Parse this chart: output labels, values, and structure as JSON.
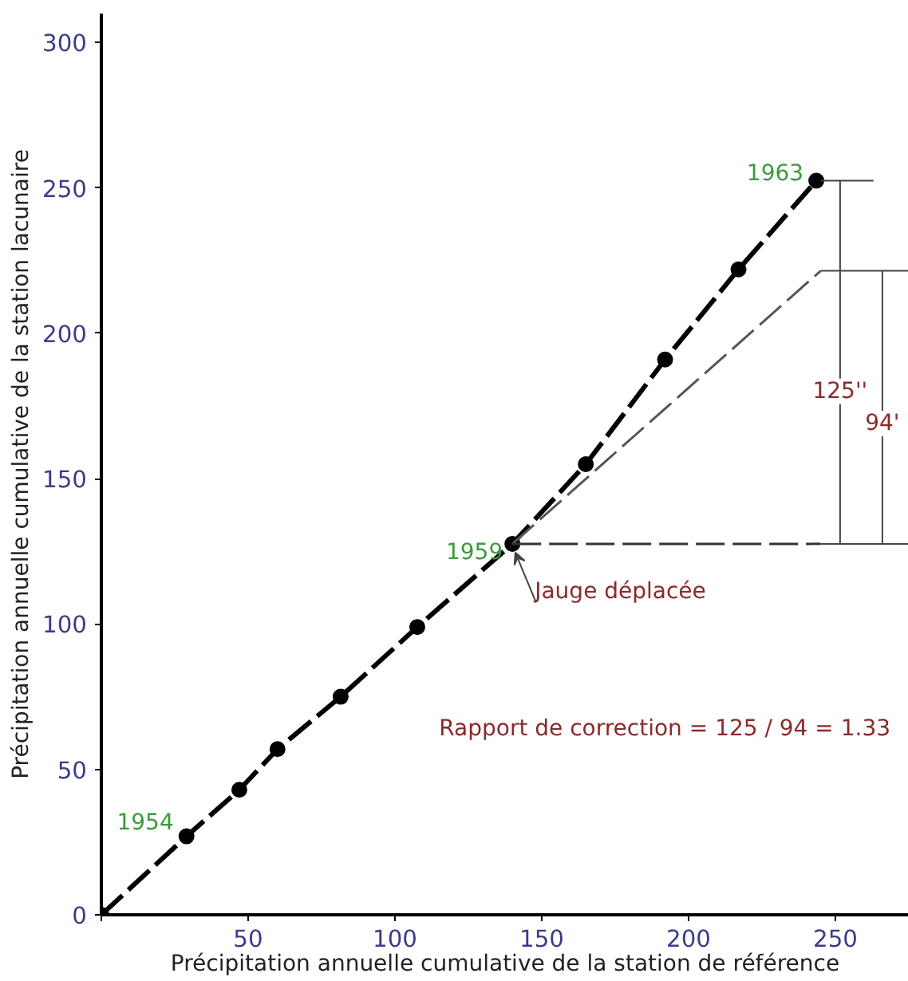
{
  "chart_data": {
    "type": "line",
    "xlabel": "Précipitation annuelle cumulative de la station de référence",
    "ylabel": "Précipitation annuelle cumulative de la station lacunaire",
    "xlim": [
      0,
      275
    ],
    "ylim": [
      0,
      310
    ],
    "xticks": [
      {
        "value": 0,
        "label": null
      },
      50,
      100,
      150,
      200,
      250
    ],
    "yticks": [
      0,
      50,
      100,
      150,
      200,
      250,
      300
    ],
    "grid": false,
    "series": [
      {
        "color": "#000000",
        "line_style": "dashed",
        "marker": "circle",
        "x": [
          0,
          29,
          47,
          60,
          81.5,
          107.6,
          140,
          165,
          192,
          217,
          243.5
        ],
        "values": [
          0,
          27,
          43,
          57,
          75,
          99,
          127.6,
          155,
          191,
          222,
          252.5
        ]
      },
      {
        "color": "#555555",
        "line_style": "dashed",
        "x": [
          140,
          245
        ],
        "values": [
          127.6,
          221.5
        ]
      },
      {
        "color": "#333333",
        "line_style": "dashed",
        "x": [
          140,
          245
        ],
        "values": [
          127.6,
          127.6
        ]
      },
      {
        "color": "#444444",
        "x": [
          245,
          263
        ],
        "values": [
          252.5,
          252.5
        ]
      },
      {
        "color": "#444444",
        "x": [
          245,
          275
        ],
        "values": [
          221.5,
          221.5
        ]
      },
      {
        "color": "#444444",
        "x": [
          245,
          275
        ],
        "values": [
          127.6,
          127.6
        ]
      },
      {
        "color": "#444444",
        "x": [
          251.6,
          251.6
        ],
        "values": [
          127.6,
          252.5
        ]
      },
      {
        "color": "#444444",
        "x": [
          266,
          266
        ],
        "values": [
          127.6,
          221.5
        ]
      }
    ],
    "annotations": [
      {
        "text": "1954",
        "x": 29,
        "y": 27
      },
      {
        "text": "1959",
        "x": 140,
        "y": 127.6
      },
      {
        "text": "1963",
        "x": 243.5,
        "y": 252.5
      },
      {
        "text": "Jauge déplacée",
        "x": 140,
        "y": 127.6
      },
      {
        "text": "125''",
        "x": 251.6,
        "y": 180
      },
      {
        "text": "94'",
        "x": 266,
        "y": 169
      },
      "Rapport de correction = 125 / 94 = 1.33"
    ]
  }
}
